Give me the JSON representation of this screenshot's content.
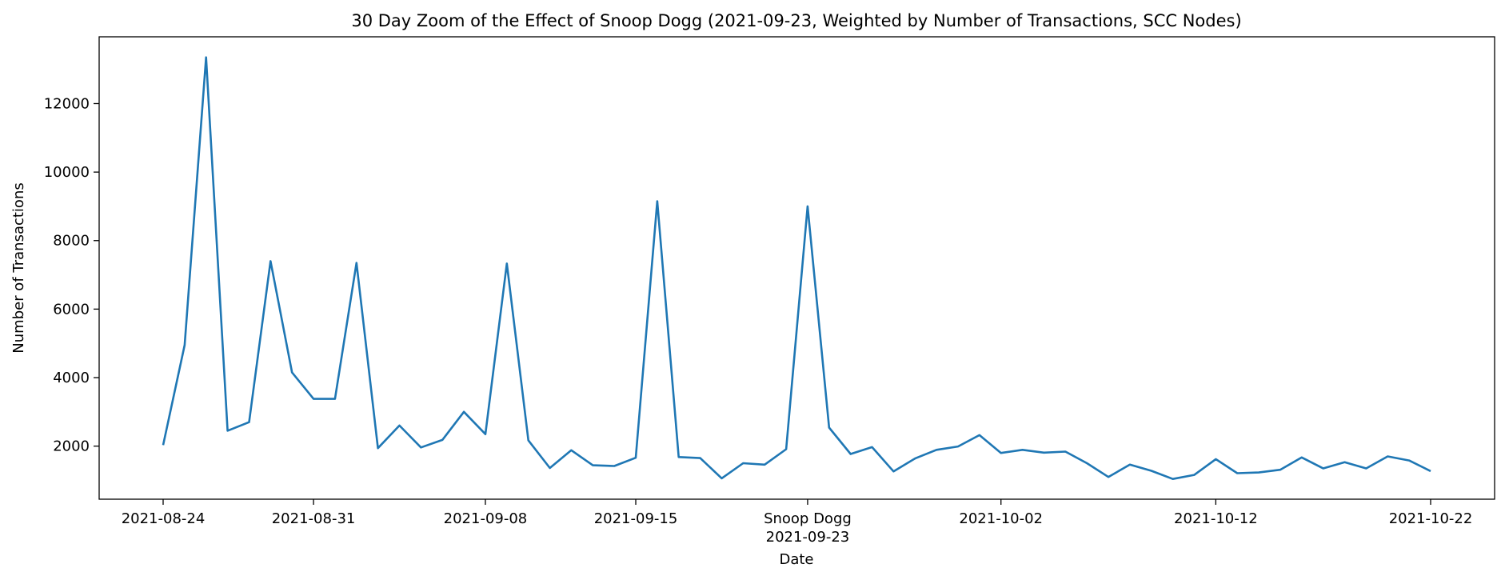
{
  "chart_data": {
    "type": "line",
    "title": "30 Day Zoom of the Effect of Snoop Dogg (2021-09-23, Weighted by Number of Transactions, SCC Nodes)",
    "xlabel": "Date",
    "ylabel": "Number of Transactions",
    "ylim": [
      450,
      13950
    ],
    "x_ticks": [
      {
        "date": "2021-08-24",
        "label": "2021-08-24"
      },
      {
        "date": "2021-08-31",
        "label": "2021-08-31"
      },
      {
        "date": "2021-09-08",
        "label": "2021-09-08"
      },
      {
        "date": "2021-09-15",
        "label": "2021-09-15"
      },
      {
        "date": "2021-09-23",
        "label": "2021-09-23",
        "event_label": "Snoop Dogg"
      },
      {
        "date": "2021-10-02",
        "label": "2021-10-02"
      },
      {
        "date": "2021-10-12",
        "label": "2021-10-12"
      },
      {
        "date": "2021-10-22",
        "label": "2021-10-22"
      }
    ],
    "y_ticks": [
      2000,
      4000,
      6000,
      8000,
      10000,
      12000
    ],
    "grid": false,
    "color": "#1f77b4",
    "series": [
      {
        "name": "",
        "x": [
          "2021-08-24",
          "2021-08-25",
          "2021-08-26",
          "2021-08-27",
          "2021-08-28",
          "2021-08-29",
          "2021-08-30",
          "2021-08-31",
          "2021-09-01",
          "2021-09-02",
          "2021-09-03",
          "2021-09-04",
          "2021-09-05",
          "2021-09-06",
          "2021-09-07",
          "2021-09-08",
          "2021-09-09",
          "2021-09-10",
          "2021-09-11",
          "2021-09-12",
          "2021-09-13",
          "2021-09-14",
          "2021-09-15",
          "2021-09-16",
          "2021-09-17",
          "2021-09-18",
          "2021-09-19",
          "2021-09-20",
          "2021-09-21",
          "2021-09-22",
          "2021-09-23",
          "2021-09-24",
          "2021-09-25",
          "2021-09-26",
          "2021-09-27",
          "2021-09-28",
          "2021-09-29",
          "2021-09-30",
          "2021-10-01",
          "2021-10-02",
          "2021-10-03",
          "2021-10-04",
          "2021-10-05",
          "2021-10-06",
          "2021-10-07",
          "2021-10-08",
          "2021-10-09",
          "2021-10-10",
          "2021-10-11",
          "2021-10-12",
          "2021-10-13",
          "2021-10-14",
          "2021-10-15",
          "2021-10-16",
          "2021-10-17",
          "2021-10-18",
          "2021-10-19",
          "2021-10-20",
          "2021-10-21",
          "2021-10-22"
        ],
        "values": [
          2030,
          4950,
          13350,
          2450,
          2700,
          7400,
          4150,
          3380,
          3380,
          7350,
          1940,
          2600,
          1960,
          2180,
          3000,
          2350,
          7330,
          2170,
          1360,
          1880,
          1440,
          1420,
          1660,
          9150,
          1680,
          1650,
          1060,
          1500,
          1460,
          1910,
          9000,
          2540,
          1770,
          1970,
          1260,
          1640,
          1890,
          1990,
          2320,
          1800,
          1890,
          1810,
          1840,
          1500,
          1100,
          1460,
          1280,
          1040,
          1160,
          1620,
          1210,
          1230,
          1310,
          1670,
          1350,
          1530,
          1350,
          1700,
          1580,
          1270
        ]
      }
    ]
  }
}
